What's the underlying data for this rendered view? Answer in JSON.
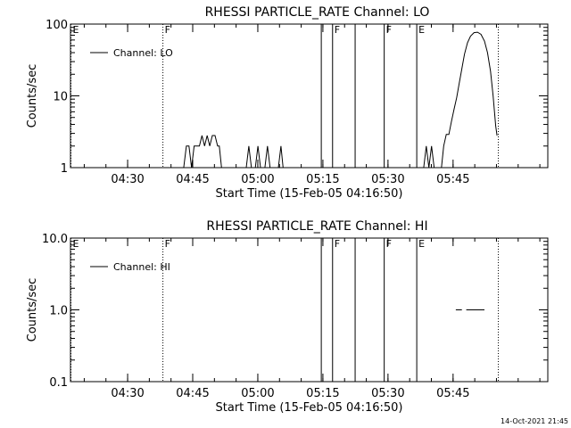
{
  "chart_data": [
    {
      "type": "line",
      "title": "RHESSI PARTICLE_RATE Channel: LO",
      "xlabel": "Start Time (15-Feb-05 04:16:50)",
      "ylabel": "Counts/sec",
      "yscale": "log",
      "ylim": [
        1,
        100
      ],
      "xlim_minutes": [
        0,
        110
      ],
      "x_ticks": [
        {
          "label": "04:30",
          "min": 13.17
        },
        {
          "label": "04:45",
          "min": 28.17
        },
        {
          "label": "05:00",
          "min": 43.17
        },
        {
          "label": "05:15",
          "min": 58.17
        },
        {
          "label": "05:30",
          "min": 73.17
        },
        {
          "label": "05:45",
          "min": 88.17
        }
      ],
      "y_ticks": [
        {
          "label": "1",
          "value": 1
        },
        {
          "label": "10",
          "value": 10
        },
        {
          "label": "100",
          "value": 100
        }
      ],
      "legend": {
        "label": "Channel: LO",
        "position": "top-left"
      },
      "event_markers": [
        {
          "label": "E",
          "min": 0.1,
          "style": "dotted"
        },
        {
          "label": "F",
          "min": 21.3,
          "style": "dotted"
        },
        {
          "label": "",
          "min": 57.8,
          "style": "solid"
        },
        {
          "label": "F",
          "min": 60.4,
          "style": "solid"
        },
        {
          "label": "",
          "min": 65.6,
          "style": "solid"
        },
        {
          "label": "F",
          "min": 72.3,
          "style": "solid"
        },
        {
          "label": "E",
          "min": 79.8,
          "style": "solid"
        },
        {
          "label": "",
          "min": 98.6,
          "style": "dotted"
        }
      ],
      "series": [
        {
          "name": "Channel: LO",
          "segments": [
            [
              [
                26.1,
                1
              ],
              [
                26.7,
                2
              ],
              [
                27.3,
                2
              ],
              [
                27.9,
                1
              ],
              [
                28.5,
                2
              ],
              [
                29.1,
                2
              ],
              [
                29.7,
                2
              ],
              [
                30.3,
                2.8
              ],
              [
                30.9,
                2
              ],
              [
                31.5,
                2.8
              ],
              [
                32.1,
                2
              ],
              [
                32.7,
                2.8
              ],
              [
                33.3,
                2.8
              ],
              [
                33.9,
                2
              ],
              [
                34.3,
                2
              ],
              [
                34.8,
                1
              ]
            ],
            [
              [
                40.5,
                1
              ],
              [
                41.1,
                2
              ],
              [
                41.7,
                1
              ]
            ],
            [
              [
                42.6,
                1
              ],
              [
                43.2,
                2
              ],
              [
                43.8,
                1
              ]
            ],
            [
              [
                44.8,
                1
              ],
              [
                45.4,
                2
              ],
              [
                46,
                1
              ]
            ],
            [
              [
                47.9,
                1
              ],
              [
                48.5,
                2
              ],
              [
                49,
                1
              ]
            ],
            [
              [
                81.4,
                1
              ],
              [
                82,
                2
              ],
              [
                82.6,
                1
              ],
              [
                83.2,
                2
              ],
              [
                83.8,
                1
              ]
            ],
            [
              [
                85.5,
                1
              ],
              [
                86,
                2
              ],
              [
                86.6,
                2.9
              ],
              [
                87.2,
                2.9
              ],
              [
                87.8,
                4.4
              ],
              [
                88.4,
                6.5
              ],
              [
                89,
                9.5
              ],
              [
                89.5,
                14
              ],
              [
                90.2,
                24
              ],
              [
                90.8,
                38
              ],
              [
                91.5,
                55
              ],
              [
                92.2,
                68
              ],
              [
                93,
                76
              ],
              [
                93.8,
                77
              ],
              [
                94.6,
                72
              ],
              [
                95.4,
                58
              ],
              [
                96.1,
                40
              ],
              [
                96.8,
                22
              ],
              [
                97.4,
                10
              ],
              [
                98,
                3.8
              ],
              [
                98.3,
                2.8
              ]
            ]
          ]
        }
      ]
    },
    {
      "type": "line",
      "title": "RHESSI PARTICLE_RATE Channel: HI",
      "xlabel": "Start Time (15-Feb-05 04:16:50)",
      "ylabel": "Counts/sec",
      "yscale": "log",
      "ylim": [
        0.1,
        10
      ],
      "xlim_minutes": [
        0,
        110
      ],
      "x_ticks": [
        {
          "label": "04:30",
          "min": 13.17
        },
        {
          "label": "04:45",
          "min": 28.17
        },
        {
          "label": "05:00",
          "min": 43.17
        },
        {
          "label": "05:15",
          "min": 58.17
        },
        {
          "label": "05:30",
          "min": 73.17
        },
        {
          "label": "05:45",
          "min": 88.17
        }
      ],
      "y_ticks": [
        {
          "label": "0.1",
          "value": 0.1
        },
        {
          "label": "1.0",
          "value": 1
        },
        {
          "label": "10.0",
          "value": 10
        }
      ],
      "legend": {
        "label": "Channel: HI",
        "position": "top-left"
      },
      "event_markers": [
        {
          "label": "E",
          "min": 0.1,
          "style": "dotted"
        },
        {
          "label": "F",
          "min": 21.3,
          "style": "dotted"
        },
        {
          "label": "",
          "min": 57.8,
          "style": "solid"
        },
        {
          "label": "F",
          "min": 60.4,
          "style": "solid"
        },
        {
          "label": "",
          "min": 65.6,
          "style": "solid"
        },
        {
          "label": "F",
          "min": 72.3,
          "style": "solid"
        },
        {
          "label": "E",
          "min": 79.8,
          "style": "solid"
        },
        {
          "label": "",
          "min": 98.6,
          "style": "dotted"
        }
      ],
      "series": [
        {
          "name": "Channel: HI",
          "segments": [
            [
              [
                88.8,
                1
              ],
              [
                90.2,
                1
              ]
            ],
            [
              [
                91.2,
                1
              ],
              [
                95.4,
                1
              ]
            ]
          ]
        }
      ]
    }
  ],
  "footer": {
    "timestamp": "14-Oct-2021 21:45"
  }
}
